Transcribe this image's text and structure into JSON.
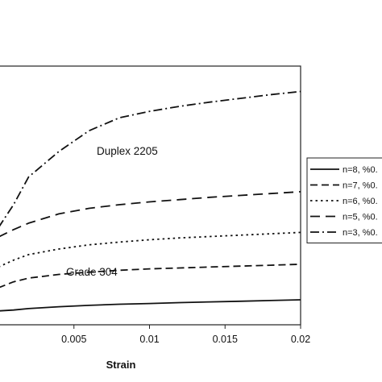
{
  "chart_data": {
    "type": "line",
    "xlabel": "Strain",
    "xlim": [
      0,
      0.02
    ],
    "xticks": [
      "0.005",
      "0.01",
      "0.015",
      "0.02"
    ],
    "ylabel": "",
    "annotations": [
      "Duplex 2205",
      "Grade 304"
    ],
    "legend_position": "right",
    "grid": false,
    "series": [
      {
        "name": "n=8, %0.",
        "dash": "solid",
        "x": [
          0,
          0.001,
          0.002,
          0.004,
          0.006,
          0.008,
          0.01,
          0.012,
          0.014,
          0.016,
          0.018,
          0.02
        ],
        "y": [
          0.3,
          0.32,
          0.35,
          0.39,
          0.42,
          0.445,
          0.46,
          0.48,
          0.495,
          0.51,
          0.525,
          0.54
        ]
      },
      {
        "name": "n=7, %0.",
        "dash": "dash",
        "x": [
          0,
          0.001,
          0.002,
          0.004,
          0.006,
          0.008,
          0.01,
          0.012,
          0.014,
          0.016,
          0.018,
          0.02
        ],
        "y": [
          0.8,
          0.93,
          1.01,
          1.09,
          1.14,
          1.18,
          1.21,
          1.23,
          1.25,
          1.27,
          1.29,
          1.31
        ]
      },
      {
        "name": "n=6, %0.",
        "dash": "dot",
        "x": [
          0,
          0.001,
          0.002,
          0.004,
          0.006,
          0.008,
          0.01,
          0.012,
          0.014,
          0.016,
          0.018,
          0.02
        ],
        "y": [
          1.25,
          1.4,
          1.52,
          1.64,
          1.73,
          1.79,
          1.84,
          1.88,
          1.91,
          1.94,
          1.97,
          2.0
        ]
      },
      {
        "name": "n=5, %0.",
        "dash": "dash-long",
        "x": [
          0,
          0.001,
          0.002,
          0.004,
          0.006,
          0.008,
          0.01,
          0.012,
          0.014,
          0.016,
          0.018,
          0.02
        ],
        "y": [
          1.9,
          2.06,
          2.2,
          2.4,
          2.52,
          2.6,
          2.66,
          2.71,
          2.76,
          2.8,
          2.84,
          2.88
        ]
      },
      {
        "name": "n=3, %0.",
        "dash": "dash-dot",
        "x": [
          0,
          0.001,
          0.002,
          0.004,
          0.006,
          0.008,
          0.01,
          0.012,
          0.014,
          0.016,
          0.018,
          0.02
        ],
        "y": [
          2.1,
          2.6,
          3.2,
          3.75,
          4.2,
          4.48,
          4.62,
          4.73,
          4.82,
          4.9,
          4.98,
          5.05
        ]
      }
    ]
  }
}
